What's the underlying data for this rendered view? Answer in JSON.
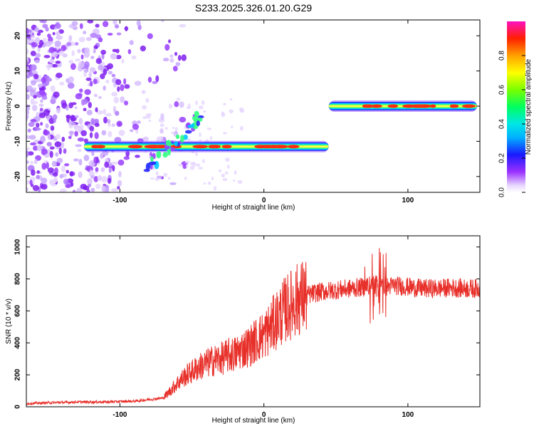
{
  "title": "S233.2025.326.01.20.G29",
  "colors": {
    "trace": "#e8302a",
    "axis": "#000000"
  },
  "colorbar": {
    "label": "Normalized spectral amplitude",
    "ticks": [
      "0.0",
      "0.2",
      "0.4",
      "0.6",
      "0.8"
    ],
    "tick_values": [
      0.0,
      0.2,
      0.4,
      0.6,
      0.8
    ],
    "range": [
      0,
      1
    ]
  },
  "chart_data": [
    {
      "type": "heatmap",
      "xlabel": "Height of straight line (km)",
      "ylabel": "Frequency (Hz)",
      "xlim": [
        -165,
        150
      ],
      "ylim": [
        -24.5,
        24.5
      ],
      "xticks": [
        -100,
        0,
        100
      ],
      "xtick_labels": [
        "-100",
        "0",
        "100"
      ],
      "yticks": [
        -20,
        -10,
        0,
        10,
        20
      ],
      "ytick_labels": [
        "-20",
        "-10",
        "0",
        "10",
        "20"
      ],
      "segments": [
        {
          "x": [
            -125,
            45
          ],
          "frequency": -11.5,
          "amplitude": "high"
        },
        {
          "x": [
            45,
            148
          ],
          "frequency": 0,
          "amplitude": "high"
        }
      ],
      "noise_region_x": [
        -165,
        -100
      ]
    },
    {
      "type": "line",
      "xlabel": "Height of straight line (km)",
      "ylabel": "SNR (10 * v/v)",
      "xlim": [
        -165,
        150
      ],
      "ylim": [
        0,
        1070
      ],
      "xticks": [
        -100,
        0,
        100
      ],
      "xtick_labels": [
        "-100",
        "0",
        "100"
      ],
      "yticks": [
        0,
        200,
        400,
        600,
        800,
        1000
      ],
      "ytick_labels": [
        "0",
        "200",
        "400",
        "600",
        "800",
        "1000"
      ],
      "series": [
        {
          "x": [
            -165,
            -150,
            -130,
            -110,
            -90,
            -80,
            -75,
            -70,
            -65,
            -60,
            -55,
            -50,
            -45,
            -40,
            -35,
            -30,
            -25,
            -20,
            -15,
            -10,
            -5,
            0,
            5,
            10,
            15,
            20,
            25,
            30,
            40,
            50,
            60,
            70,
            75,
            80,
            85,
            90,
            100,
            110,
            120,
            130,
            140,
            150
          ],
          "y": [
            20,
            25,
            30,
            30,
            35,
            45,
            50,
            55,
            100,
            150,
            190,
            220,
            250,
            270,
            290,
            300,
            320,
            330,
            360,
            380,
            420,
            450,
            500,
            560,
            610,
            650,
            680,
            700,
            720,
            730,
            740,
            750,
            760,
            770,
            750,
            760,
            750,
            740,
            740,
            745,
            740,
            740
          ]
        }
      ]
    }
  ]
}
